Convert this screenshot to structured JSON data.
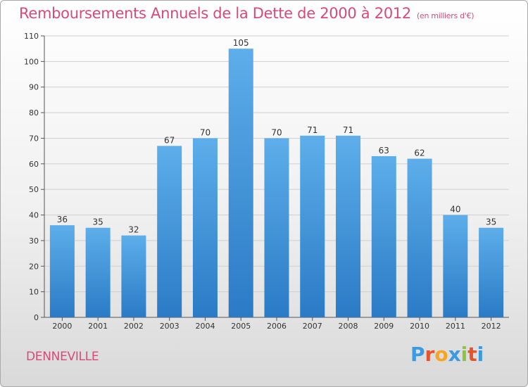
{
  "header": {
    "title": "Remboursements Annuels de la Dette de 2000 à 2012",
    "unit": "(en milliers d'€)"
  },
  "footer": {
    "commune": "DENNEVILLE",
    "logo_letters": [
      "P",
      "r",
      "o",
      "x",
      "i",
      "t",
      "i"
    ],
    "logo_colors": [
      "#3b9ae1",
      "#e6542c",
      "#f5a623",
      "#3b9ae1",
      "#8cc63f",
      "#e6542c",
      "#3b9ae1"
    ]
  },
  "chart_data": {
    "type": "bar",
    "categories": [
      "2000",
      "2001",
      "2002",
      "2003",
      "2004",
      "2005",
      "2006",
      "2007",
      "2008",
      "2009",
      "2010",
      "2011",
      "2012"
    ],
    "values": [
      36,
      35,
      32,
      67,
      70,
      105,
      70,
      71,
      71,
      63,
      62,
      40,
      35
    ],
    "ylim": [
      0,
      110
    ],
    "yticks": [
      0,
      10,
      20,
      30,
      40,
      50,
      60,
      70,
      80,
      90,
      100,
      110
    ],
    "grid": true,
    "bar_color": "#3d95dc"
  }
}
